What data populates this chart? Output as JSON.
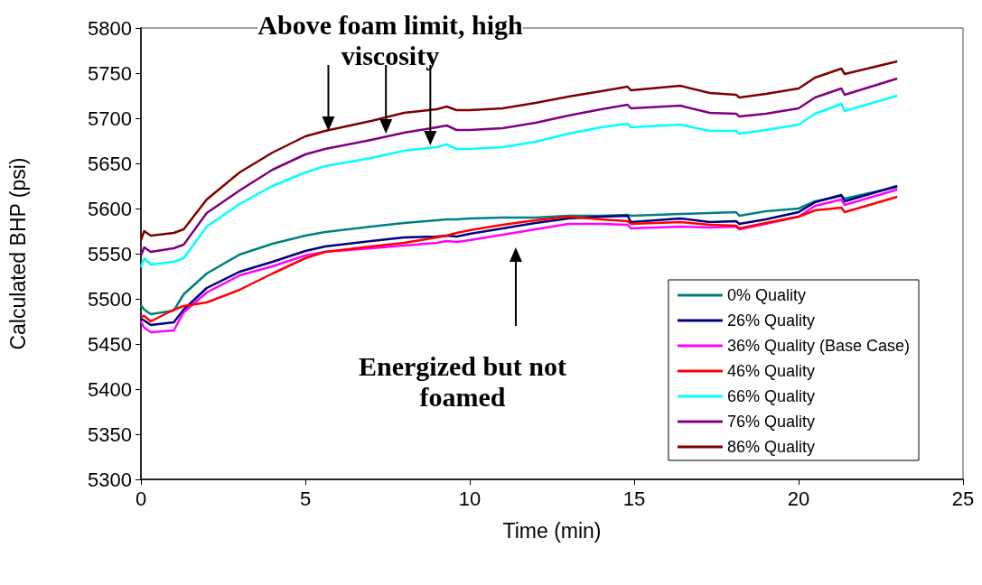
{
  "chart_data": {
    "type": "line",
    "xlabel": "Time (min)",
    "ylabel": "Calculated BHP (psi)",
    "x": [
      0,
      0.1,
      0.3,
      1.0,
      1.3,
      2,
      3,
      4,
      5,
      5.6,
      7,
      8,
      9,
      9.3,
      9.6,
      10,
      11,
      12,
      13,
      14,
      14.8,
      14.9,
      16.4,
      17.3,
      18.1,
      18.2,
      19,
      20,
      20.5,
      21.3,
      21.4,
      23
    ],
    "series": [
      {
        "name": "0% Quality",
        "color": "#008080",
        "values": [
          5493,
          5488,
          5483,
          5487,
          5505,
          5528,
          5549,
          5561,
          5570,
          5574,
          5580,
          5584,
          5587,
          5588,
          5588,
          5589,
          5590,
          5590,
          5592,
          5592,
          5593,
          5592,
          5594,
          5595,
          5596,
          5592,
          5597,
          5600,
          5608,
          5614,
          5611,
          5624
        ]
      },
      {
        "name": "26% Quality",
        "color": "#000080",
        "values": [
          5478,
          5476,
          5471,
          5474,
          5488,
          5512,
          5530,
          5541,
          5553,
          5558,
          5564,
          5568,
          5569,
          5570,
          5569,
          5572,
          5578,
          5584,
          5589,
          5591,
          5592,
          5585,
          5589,
          5585,
          5586,
          5583,
          5588,
          5596,
          5607,
          5615,
          5608,
          5625
        ]
      },
      {
        "name": "36% Quality (Base Case)",
        "color": "#ff00ff",
        "values": [
          5475,
          5468,
          5463,
          5465,
          5485,
          5507,
          5526,
          5536,
          5548,
          5552,
          5556,
          5559,
          5562,
          5564,
          5563,
          5565,
          5571,
          5577,
          5583,
          5583,
          5582,
          5578,
          5580,
          5579,
          5580,
          5577,
          5583,
          5591,
          5603,
          5610,
          5604,
          5621
        ]
      },
      {
        "name": "46% Quality",
        "color": "#ff0000",
        "values": [
          5480,
          5481,
          5475,
          5488,
          5492,
          5496,
          5510,
          5528,
          5545,
          5552,
          5558,
          5562,
          5568,
          5570,
          5573,
          5576,
          5582,
          5587,
          5591,
          5588,
          5586,
          5583,
          5585,
          5582,
          5581,
          5578,
          5584,
          5591,
          5598,
          5601,
          5596,
          5613
        ]
      },
      {
        "name": "66% Quality",
        "color": "#00ffff",
        "values": [
          5535,
          5545,
          5538,
          5541,
          5545,
          5580,
          5605,
          5625,
          5640,
          5647,
          5656,
          5664,
          5668,
          5671,
          5666,
          5666,
          5668,
          5674,
          5683,
          5690,
          5694,
          5690,
          5693,
          5686,
          5686,
          5683,
          5687,
          5693,
          5705,
          5716,
          5708,
          5725
        ]
      },
      {
        "name": "76% Quality",
        "color": "#800080",
        "values": [
          5548,
          5557,
          5552,
          5556,
          5560,
          5595,
          5620,
          5643,
          5660,
          5666,
          5676,
          5684,
          5690,
          5692,
          5687,
          5687,
          5689,
          5695,
          5703,
          5710,
          5715,
          5711,
          5714,
          5706,
          5705,
          5702,
          5705,
          5711,
          5723,
          5733,
          5726,
          5744
        ]
      },
      {
        "name": "86% Quality",
        "color": "#800000",
        "values": [
          5565,
          5575,
          5570,
          5573,
          5577,
          5610,
          5640,
          5662,
          5680,
          5686,
          5697,
          5706,
          5710,
          5713,
          5709,
          5709,
          5711,
          5717,
          5724,
          5730,
          5735,
          5731,
          5736,
          5728,
          5726,
          5723,
          5727,
          5733,
          5745,
          5755,
          5749,
          5763
        ]
      }
    ],
    "xlim": [
      0,
      25
    ],
    "xticks": [
      0,
      5,
      10,
      15,
      20,
      25
    ],
    "ylim": [
      5300,
      5800
    ],
    "yticks": [
      5300,
      5350,
      5400,
      5450,
      5500,
      5550,
      5600,
      5650,
      5700,
      5750,
      5800
    ],
    "annotations": [
      {
        "text": "Above foam limit, high viscosity",
        "x": 5.7,
        "y": 5686
      },
      "Energized but not foamed"
    ],
    "grid": false,
    "legend": "bottom right",
    "marker": "none",
    "line_style": "solid"
  }
}
